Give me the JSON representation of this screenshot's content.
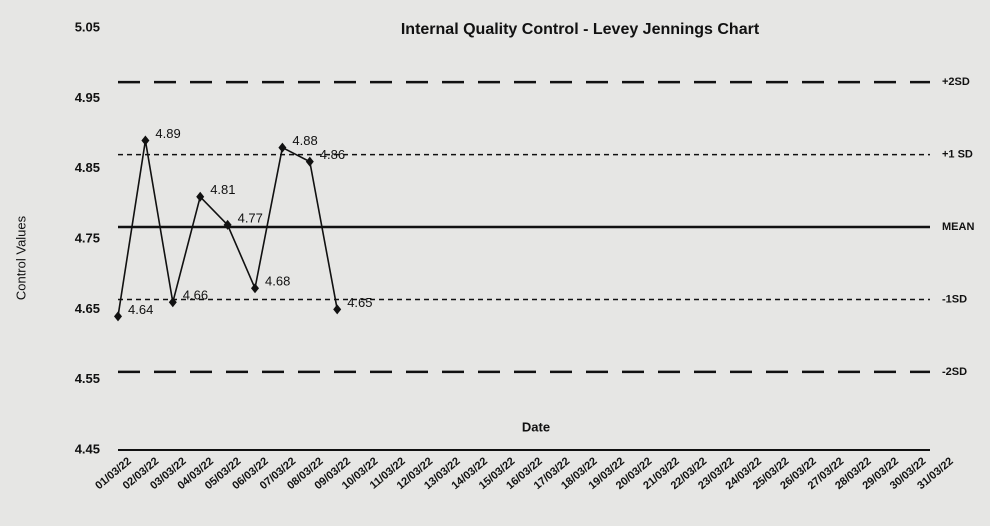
{
  "chart_data": {
    "type": "line",
    "title": "Internal Quality Control - Levey Jennings Chart",
    "y_label": "Control Values",
    "x_label": "Date",
    "categories": [
      "01/03/22",
      "02/03/22",
      "03/03/22",
      "04/03/22",
      "05/03/22",
      "06/03/22",
      "07/03/22",
      "08/03/22",
      "09/03/22",
      "10/03/22",
      "11/03/22",
      "12/03/22",
      "13/03/22",
      "14/03/22",
      "15/03/22",
      "16/03/22",
      "17/03/22",
      "18/03/22",
      "19/03/22",
      "20/03/22",
      "21/03/22",
      "22/03/22",
      "23/03/22",
      "24/03/22",
      "25/03/22",
      "26/03/22",
      "27/03/22",
      "28/03/22",
      "29/03/22",
      "30/03/22",
      "31/03/22"
    ],
    "values": [
      4.64,
      4.89,
      4.66,
      4.81,
      4.77,
      4.68,
      4.88,
      4.86,
      4.65,
      null,
      null,
      null,
      null,
      null,
      null,
      null,
      null,
      null,
      null,
      null,
      null,
      null,
      null,
      null,
      null,
      null,
      null,
      null,
      null,
      null,
      null
    ],
    "color": "#111111",
    "ylim": [
      4.45,
      5.05
    ],
    "yticks": [
      4.45,
      4.55,
      4.65,
      4.75,
      4.85,
      4.95,
      5.05
    ],
    "reference_lines": [
      {
        "label": "+2SD",
        "value": 4.973,
        "style": "dash"
      },
      {
        "label": "+1 SD",
        "value": 4.87,
        "style": "dot"
      },
      {
        "label": "MEAN",
        "value": 4.767,
        "style": "solid"
      },
      {
        "label": "-1SD",
        "value": 4.664,
        "style": "dot"
      },
      {
        "label": "-2SD",
        "value": 4.561,
        "style": "dash"
      }
    ]
  }
}
